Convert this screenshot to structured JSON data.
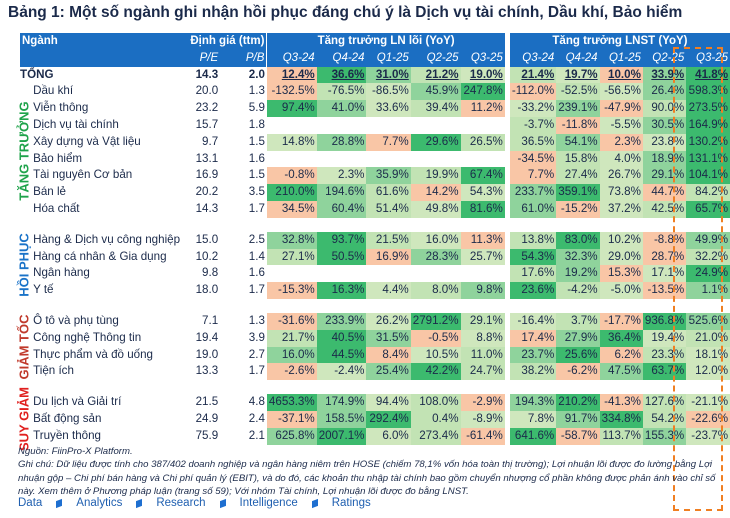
{
  "title": "Bảng 1: Một số ngành ghi nhận hồi phục đáng chú ý là Dịch vụ tài chính, Dầu khí, Bảo hiểm",
  "header": {
    "sector": "Ngành",
    "valuation": "Định giá (ttm)",
    "pe": "P/E",
    "pb": "P/B",
    "core_growth": "Tăng trưởng LN lõi (YoY)",
    "npat_growth": "Tăng trưởng LNST (YoY)",
    "quarters": [
      "Q3-24",
      "Q4-24",
      "Q1-25",
      "Q2-25",
      "Q3-25"
    ]
  },
  "colors": {
    "header": "#1b6ec2",
    "highlight_box": "#f07f22",
    "positive_strong": "#3cba6e",
    "negative": "#f9c6a6"
  },
  "total": {
    "name": "TỔNG",
    "pe": "14.3",
    "pb": "2.0",
    "ln": [
      "12.4%",
      "36.6%",
      "31.0%",
      "21.2%",
      "19.0%"
    ],
    "lnst": [
      "21.4%",
      "19.7%",
      "10.0%",
      "33.9%",
      "41.8%"
    ]
  },
  "groups": [
    {
      "label": "TĂNG TRƯỞNG",
      "color": "#1ea34a",
      "rows": [
        {
          "name": "Dầu khí",
          "pe": "20.0",
          "pb": "1.3",
          "ln": [
            "-132.5%",
            "-76.5%",
            "-86.5%",
            "45.9%",
            "247.8%"
          ],
          "lnst": [
            "-112.0%",
            "-52.5%",
            "-56.5%",
            "26.4%",
            "598.3%"
          ]
        },
        {
          "name": "Viễn thông",
          "pe": "23.2",
          "pb": "5.9",
          "ln": [
            "97.4%",
            "41.0%",
            "33.6%",
            "39.4%",
            "11.2%"
          ],
          "lnst": [
            "-33.2%",
            "239.1%",
            "-47.9%",
            "90.0%",
            "273.5%"
          ]
        },
        {
          "name": "Dịch vụ tài chính",
          "pe": "15.7",
          "pb": "1.8",
          "ln": [
            "",
            "",
            "",
            "",
            ""
          ],
          "lnst": [
            "-3.7%",
            "-11.8%",
            "-5.5%",
            "30.5%",
            "164.9%"
          ]
        },
        {
          "name": "Xây dựng và Vật liệu",
          "pe": "9.7",
          "pb": "1.5",
          "ln": [
            "14.8%",
            "28.8%",
            "7.7%",
            "29.6%",
            "26.5%"
          ],
          "lnst": [
            "36.5%",
            "54.1%",
            "2.3%",
            "23.8%",
            "130.2%"
          ]
        },
        {
          "name": "Bảo hiểm",
          "pe": "13.1",
          "pb": "1.6",
          "ln": [
            "",
            "",
            "",
            "",
            ""
          ],
          "lnst": [
            "-34.5%",
            "15.8%",
            "4.0%",
            "18.9%",
            "131.1%"
          ]
        },
        {
          "name": "Tài nguyên Cơ bản",
          "pe": "16.9",
          "pb": "1.5",
          "ln": [
            "-0.8%",
            "2.3%",
            "35.9%",
            "19.9%",
            "67.4%"
          ],
          "lnst": [
            "7.7%",
            "27.4%",
            "26.7%",
            "29.1%",
            "104.1%"
          ]
        },
        {
          "name": "Bán lẻ",
          "pe": "20.2",
          "pb": "3.5",
          "ln": [
            "210.0%",
            "194.6%",
            "61.6%",
            "14.2%",
            "54.3%"
          ],
          "lnst": [
            "233.7%",
            "359.1%",
            "73.8%",
            "44.7%",
            "84.2%"
          ]
        },
        {
          "name": "Hóa chất",
          "pe": "14.3",
          "pb": "1.7",
          "ln": [
            "34.5%",
            "60.4%",
            "51.4%",
            "49.8%",
            "81.6%"
          ],
          "lnst": [
            "61.0%",
            "-15.2%",
            "37.2%",
            "42.5%",
            "65.7%"
          ]
        }
      ]
    },
    {
      "label": "HỒI PHỤC",
      "color": "#1a73c8",
      "rows": [
        {
          "name": "Hàng & Dịch vụ công nghiệp",
          "pe": "15.0",
          "pb": "2.5",
          "ln": [
            "32.8%",
            "93.7%",
            "21.5%",
            "16.0%",
            "11.3%"
          ],
          "lnst": [
            "13.8%",
            "83.0%",
            "10.2%",
            "-8.8%",
            "49.9%"
          ]
        },
        {
          "name": "Hàng cá nhân & Gia dụng",
          "pe": "10.2",
          "pb": "1.4",
          "ln": [
            "27.1%",
            "50.5%",
            "16.9%",
            "28.3%",
            "25.7%"
          ],
          "lnst": [
            "54.3%",
            "32.3%",
            "29.0%",
            "28.7%",
            "32.2%"
          ]
        },
        {
          "name": "Ngân hàng",
          "pe": "9.8",
          "pb": "1.6",
          "ln": [
            "",
            "",
            "",
            "",
            ""
          ],
          "lnst": [
            "17.6%",
            "19.2%",
            "15.3%",
            "17.1%",
            "24.9%"
          ]
        },
        {
          "name": "Y tế",
          "pe": "18.0",
          "pb": "1.7",
          "ln": [
            "-15.3%",
            "16.3%",
            "4.4%",
            "8.0%",
            "9.8%"
          ],
          "lnst": [
            "23.6%",
            "-4.2%",
            "-5.0%",
            "-13.5%",
            "1.1%"
          ]
        }
      ]
    },
    {
      "label": "GIẢM TỐC",
      "color": "#c0392b",
      "rows": [
        {
          "name": "Ô tô và phụ tùng",
          "pe": "7.1",
          "pb": "1.3",
          "ln": [
            "-31.6%",
            "233.9%",
            "26.2%",
            "2791.2%",
            "29.1%"
          ],
          "lnst": [
            "-16.4%",
            "3.7%",
            "-17.7%",
            "936.8%",
            "525.6%"
          ]
        },
        {
          "name": "Công nghệ Thông tin",
          "pe": "19.4",
          "pb": "3.9",
          "ln": [
            "21.7%",
            "40.5%",
            "31.5%",
            "-0.5%",
            "8.8%"
          ],
          "lnst": [
            "17.4%",
            "27.9%",
            "36.4%",
            "19.4%",
            "21.0%"
          ]
        },
        {
          "name": "Thực phẩm và đồ uống",
          "pe": "19.0",
          "pb": "2.7",
          "ln": [
            "16.0%",
            "44.5%",
            "8.4%",
            "10.5%",
            "11.0%"
          ],
          "lnst": [
            "23.7%",
            "25.6%",
            "6.2%",
            "23.3%",
            "18.1%"
          ]
        },
        {
          "name": "Tiện ích",
          "pe": "13.3",
          "pb": "1.7",
          "ln": [
            "-2.6%",
            "-2.4%",
            "25.4%",
            "42.2%",
            "24.7%"
          ],
          "lnst": [
            "38.2%",
            "-6.2%",
            "47.5%",
            "63.7%",
            "12.0%"
          ]
        }
      ]
    },
    {
      "label": "SUY GIẢM",
      "color": "#e0201f",
      "rows": [
        {
          "name": "Du lịch và Giải trí",
          "pe": "21.5",
          "pb": "4.8",
          "ln": [
            "4653.3%",
            "174.9%",
            "94.4%",
            "108.0%",
            "-2.9%"
          ],
          "lnst": [
            "194.3%",
            "210.2%",
            "-41.3%",
            "127.6%",
            "-21.1%"
          ]
        },
        {
          "name": "Bất động sản",
          "pe": "24.9",
          "pb": "2.4",
          "ln": [
            "-37.1%",
            "158.5%",
            "292.4%",
            "0.4%",
            "-8.9%"
          ],
          "lnst": [
            "7.8%",
            "91.7%",
            "334.8%",
            "54.2%",
            "-22.6%"
          ]
        },
        {
          "name": "Truyền thông",
          "pe": "75.9",
          "pb": "2.1",
          "ln": [
            "625.8%",
            "2007.1%",
            "6.0%",
            "273.4%",
            "-61.4%"
          ],
          "lnst": [
            "641.6%",
            "-58.7%",
            "113.7%",
            "155.3%",
            "-23.7%"
          ]
        }
      ]
    }
  ],
  "notes": {
    "source": "Nguồn: FiinPro-X Platform.",
    "note": "Ghi chú: Dữ liệu được tính cho 387/402 doanh nghiệp và ngân hàng niêm trên HOSE (chiếm 78,1% vốn hóa toàn thị trường); Lợi nhuận lõi được đo lường bằng Lợi nhuận gộp – Chi phí bán hàng và Chi phí quản lý (EBIT), và do đó, các khoản thu nhập tài chính bao gồm chuyển nhượng cổ phần không được phản ánh vào chỉ số này. Xem thêm ở Phương pháp luận (trang số 59); Với nhóm Tài chính, Lợi nhuận lõi được đo bằng LNST."
  },
  "footer": [
    "Data",
    "Analytics",
    "Research",
    "Intelligence",
    "Ratings"
  ]
}
